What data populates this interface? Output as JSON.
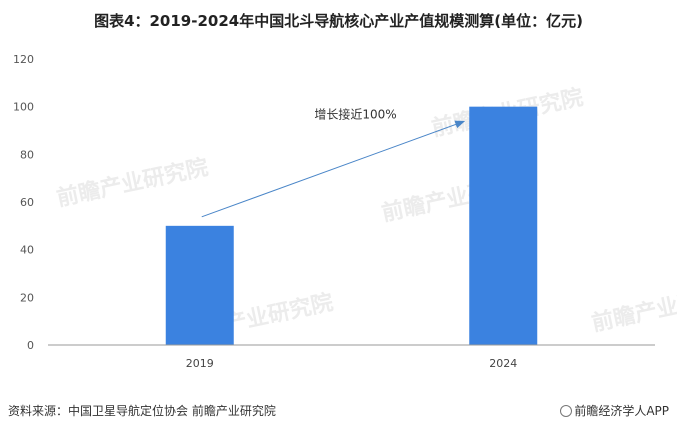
{
  "title": "图表4：2019-2024年中国北斗导航核心产业产值规模测算(单位：亿元)",
  "chart_data": {
    "type": "bar",
    "categories": [
      "2019",
      "2024"
    ],
    "values": [
      50,
      100
    ],
    "ylim": [
      0,
      120
    ],
    "yticks": [
      0,
      20,
      40,
      60,
      80,
      100,
      120
    ],
    "bar_color": "#3b82e0",
    "grid": false,
    "annotation": "增长接近100%",
    "arrow_color": "#4a86c8"
  },
  "footer": {
    "source": "资料来源：中国卫星导航定位协会 前瞻产业研究院",
    "brand": "前瞻经济学人APP"
  },
  "watermark": "前瞻产业研究院"
}
